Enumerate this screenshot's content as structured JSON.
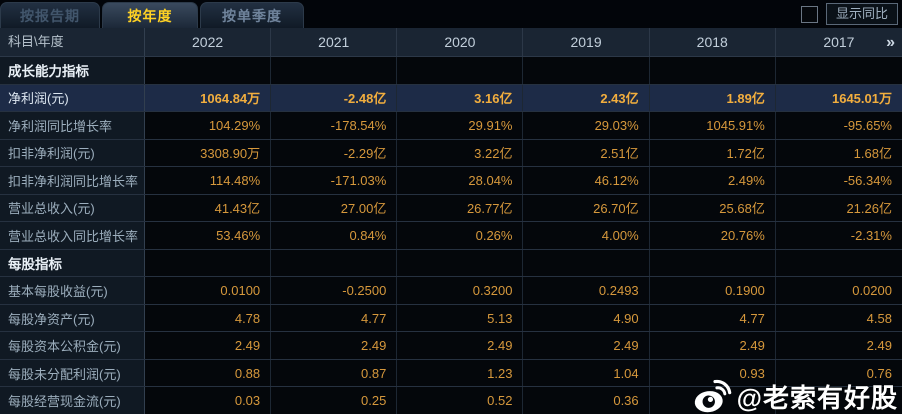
{
  "tabs": [
    {
      "label": "按报告期",
      "active": false
    },
    {
      "label": "按年度",
      "active": true
    },
    {
      "label": "按单季度",
      "active": false
    }
  ],
  "controls": {
    "show_yoy_label": "显示同比",
    "show_yoy_checked": false
  },
  "table": {
    "corner_label": "科目\\年度",
    "years": [
      "2022",
      "2021",
      "2020",
      "2019",
      "2018",
      "2017"
    ],
    "more_label": "»",
    "rows": [
      {
        "type": "section",
        "label": "成长能力指标",
        "values": [
          "",
          "",
          "",
          "",
          "",
          ""
        ]
      },
      {
        "type": "highlight",
        "label": "净利润(元)",
        "values": [
          "1064.84万",
          "-2.48亿",
          "3.16亿",
          "2.43亿",
          "1.89亿",
          "1645.01万"
        ]
      },
      {
        "type": "data",
        "label": "净利润同比增长率",
        "values": [
          "104.29%",
          "-178.54%",
          "29.91%",
          "29.03%",
          "1045.91%",
          "-95.65%"
        ]
      },
      {
        "type": "data",
        "label": "扣非净利润(元)",
        "values": [
          "3308.90万",
          "-2.29亿",
          "3.22亿",
          "2.51亿",
          "1.72亿",
          "1.68亿"
        ]
      },
      {
        "type": "data",
        "label": "扣非净利润同比增长率",
        "values": [
          "114.48%",
          "-171.03%",
          "28.04%",
          "46.12%",
          "2.49%",
          "-56.34%"
        ]
      },
      {
        "type": "data",
        "label": "营业总收入(元)",
        "values": [
          "41.43亿",
          "27.00亿",
          "26.77亿",
          "26.70亿",
          "25.68亿",
          "21.26亿"
        ]
      },
      {
        "type": "data",
        "label": "营业总收入同比增长率",
        "values": [
          "53.46%",
          "0.84%",
          "0.26%",
          "4.00%",
          "20.76%",
          "-2.31%"
        ]
      },
      {
        "type": "section",
        "label": "每股指标",
        "values": [
          "",
          "",
          "",
          "",
          "",
          ""
        ]
      },
      {
        "type": "data",
        "label": "基本每股收益(元)",
        "values": [
          "0.0100",
          "-0.2500",
          "0.3200",
          "0.2493",
          "0.1900",
          "0.0200"
        ]
      },
      {
        "type": "data",
        "label": "每股净资产(元)",
        "values": [
          "4.78",
          "4.77",
          "5.13",
          "4.90",
          "4.77",
          "4.58"
        ]
      },
      {
        "type": "data",
        "label": "每股资本公积金(元)",
        "values": [
          "2.49",
          "2.49",
          "2.49",
          "2.49",
          "2.49",
          "2.49"
        ]
      },
      {
        "type": "data",
        "label": "每股未分配利润(元)",
        "values": [
          "0.88",
          "0.87",
          "1.23",
          "1.04",
          "0.93",
          "0.76"
        ]
      },
      {
        "type": "data",
        "label": "每股经营现金流(元)",
        "values": [
          "0.03",
          "0.25",
          "0.52",
          "0.36",
          "",
          ""
        ]
      }
    ]
  },
  "watermark": {
    "handle": "@老索有好股"
  },
  "colors": {
    "background": "#04070b",
    "header_bg": "#1a2533",
    "label_col_bg": "#101923",
    "highlight_row_bg": "#1d2b47",
    "value_gold": "#d6983c",
    "highlight_gold": "#f2ae3e",
    "active_tab_yellow": "#ffd224"
  }
}
